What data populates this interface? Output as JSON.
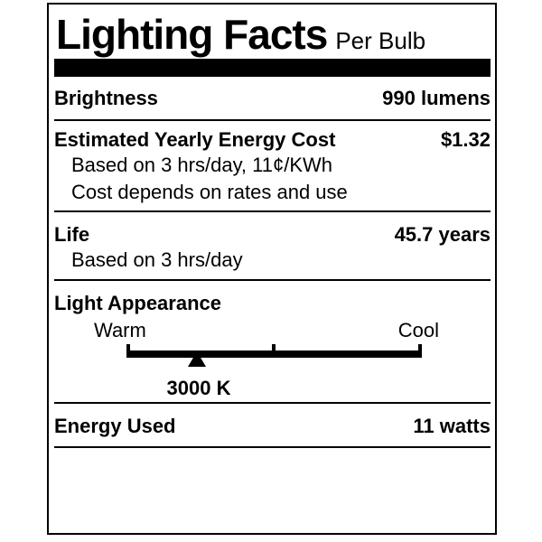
{
  "label": {
    "title": "Lighting Facts",
    "subtitle": "Per Bulb",
    "brightness": {
      "label": "Brightness",
      "value": "990 lumens"
    },
    "energy_cost": {
      "label": "Estimated Yearly Energy Cost",
      "value": "$1.32",
      "notes": [
        "Based on 3 hrs/day, 11¢/KWh",
        "Cost depends on rates and use"
      ]
    },
    "life": {
      "label": "Life",
      "value": "45.7 years",
      "notes": [
        "Based on 3 hrs/day"
      ]
    },
    "light_appearance": {
      "label": "Light Appearance",
      "scale_left": "Warm",
      "scale_right": "Cool",
      "marker_value": "3000 K",
      "marker_position_pct": 23.9
    },
    "energy_used": {
      "label": "Energy Used",
      "value": "11 watts"
    },
    "colors": {
      "text": "#000000",
      "background": "#ffffff",
      "rule": "#000000"
    }
  }
}
